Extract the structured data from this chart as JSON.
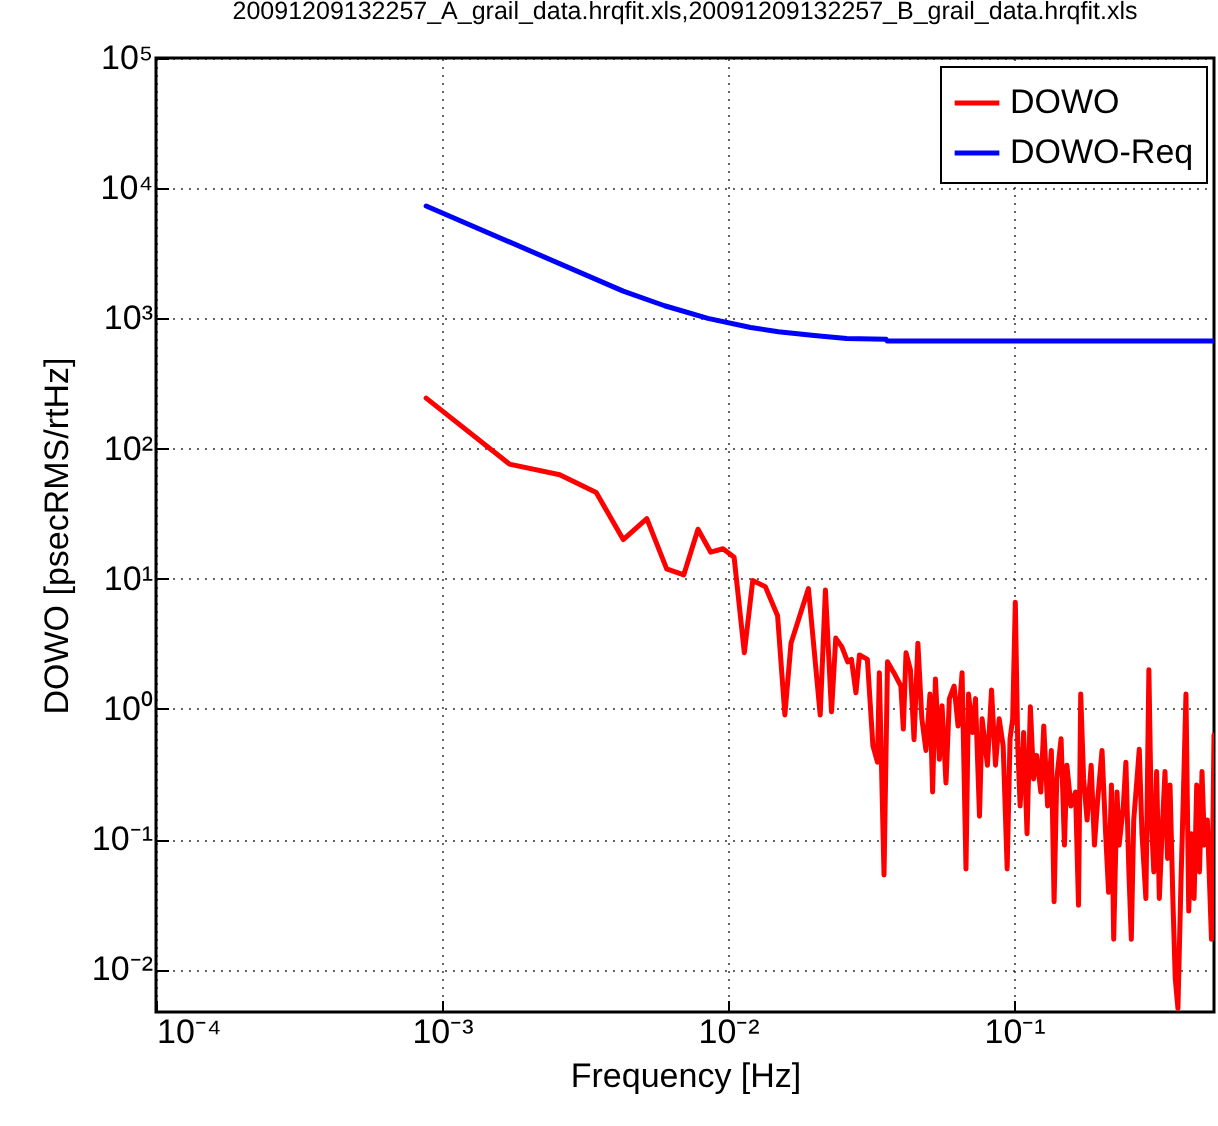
{
  "chart_data": {
    "type": "line",
    "title": "20091209132257_A_grail_data.hrqfit.xls,20091209132257_B_grail_data.hrqfit.xls",
    "xlabel": "Frequency [Hz]",
    "ylabel": "DOWO [psecRMS/rtHz]",
    "log": "xy",
    "grid": true,
    "legend": "top right",
    "line_style": "solid",
    "xlim": [
      0.0001,
      0.5
    ],
    "ylim": [
      0.0047,
      100000
    ],
    "xticks": [
      {
        "value": 0.0001,
        "label": "10⁻⁴"
      },
      {
        "value": 0.001,
        "label": "10⁻³"
      },
      {
        "value": 0.01,
        "label": "10⁻²"
      },
      {
        "value": 0.1,
        "label": "10⁻¹"
      }
    ],
    "yticks": [
      {
        "value": 0.01,
        "label": "10⁻²"
      },
      {
        "value": 0.1,
        "label": "10⁻¹"
      },
      {
        "value": 1,
        "label": "10⁰"
      },
      {
        "value": 10,
        "label": "10¹"
      },
      {
        "value": 100,
        "label": "10²"
      },
      {
        "value": 1000,
        "label": "10³"
      },
      {
        "value": 10000,
        "label": "10⁴"
      },
      {
        "value": 100000,
        "label": "10⁵"
      }
    ],
    "series": [
      {
        "name": "DOWO",
        "color": "#ff0000",
        "x": [
          0.00088,
          0.00172,
          0.00258,
          0.00346,
          0.0043,
          0.0052,
          0.0061,
          0.007,
          0.00785,
          0.0087,
          0.0096,
          0.0105,
          0.0114,
          0.0122,
          0.0135,
          0.0149,
          0.0158,
          0.0166,
          0.0191,
          0.021,
          0.0219,
          0.023,
          0.0238,
          0.025,
          0.0262,
          0.027,
          0.028,
          0.0288,
          0.0307,
          0.0321,
          0.0333,
          0.0338,
          0.0351,
          0.0361,
          0.038,
          0.0402,
          0.041,
          0.0419,
          0.0434,
          0.0447,
          0.0461,
          0.0476,
          0.0492,
          0.0508,
          0.0519,
          0.0531,
          0.0548,
          0.056,
          0.0578,
          0.0594,
          0.0617,
          0.0637,
          0.0658,
          0.0679,
          0.0693,
          0.0716,
          0.0733,
          0.0757,
          0.0773,
          0.0807,
          0.0834,
          0.0861,
          0.0887,
          0.0916,
          0.0946,
          0.0968,
          0.0989,
          0.101,
          0.103,
          0.105,
          0.108,
          0.111,
          0.114,
          0.117,
          0.12,
          0.124,
          0.127,
          0.131,
          0.135,
          0.138,
          0.141,
          0.146,
          0.15,
          0.153,
          0.158,
          0.164,
          0.168,
          0.171,
          0.175,
          0.18,
          0.186,
          0.191,
          0.196,
          0.203,
          0.209,
          0.214,
          0.219,
          0.223,
          0.229,
          0.233,
          0.241,
          0.246,
          0.252,
          0.257,
          0.262,
          0.269,
          0.274,
          0.28,
          0.289,
          0.296,
          0.302,
          0.308,
          0.315,
          0.322,
          0.329,
          0.337,
          0.344,
          0.351,
          0.359,
          0.366,
          0.374,
          0.383,
          0.391,
          0.399,
          0.408,
          0.417,
          0.426,
          0.435,
          0.445,
          0.454,
          0.463,
          0.474,
          0.49,
          0.5
        ],
        "values": [
          244,
          76,
          63,
          46,
          20,
          29,
          11.9,
          10.7,
          24,
          16,
          17,
          14.6,
          2.7,
          9.7,
          8.7,
          5.2,
          0.9,
          3.2,
          8.4,
          0.9,
          8.2,
          0.95,
          3.5,
          3,
          2.3,
          2.4,
          1.33,
          2.6,
          2.4,
          0.52,
          0.39,
          1.9,
          0.053,
          2.3,
          1.9,
          1.5,
          0.7,
          2.7,
          2,
          0.58,
          3.2,
          0.84,
          0.48,
          1.3,
          0.23,
          1.7,
          0.41,
          1.06,
          0.27,
          1.2,
          1.5,
          0.74,
          1.9,
          0.059,
          1.3,
          0.66,
          1.2,
          0.15,
          0.84,
          0.37,
          1.4,
          0.37,
          0.84,
          0.52,
          0.059,
          0.59,
          0.84,
          6.6,
          0.52,
          0.18,
          0.66,
          0.11,
          1.04,
          0.29,
          0.44,
          0.23,
          0.74,
          0.18,
          0.48,
          0.033,
          0.29,
          0.59,
          0.09,
          0.37,
          0.18,
          0.23,
          0.031,
          1.3,
          0.29,
          0.14,
          0.37,
          0.09,
          0.2,
          0.48,
          0.11,
          0.039,
          0.26,
          0.017,
          0.23,
          0.09,
          0.18,
          0.39,
          0.056,
          0.017,
          0.14,
          0.29,
          0.49,
          0.11,
          0.035,
          2,
          0.14,
          0.056,
          0.33,
          0.035,
          0.11,
          0.33,
          0.071,
          0.26,
          0.035,
          0.0085,
          0.005,
          0.044,
          0.23,
          1.3,
          0.028,
          0.11,
          0.035,
          0.26,
          0.056,
          0.33,
          0.09,
          0.14,
          0.017,
          0.63
        ]
      },
      {
        "name": "DOWO-Req",
        "color": "#0000ff",
        "x": [
          0.00088,
          0.0043,
          0.006,
          0.0085,
          0.012,
          0.015,
          0.02,
          0.026,
          0.0357,
          0.036,
          0.5
        ],
        "values": [
          7300,
          1620,
          1250,
          1000,
          850,
          790,
          740,
          700,
          690,
          670,
          670
        ]
      }
    ]
  }
}
